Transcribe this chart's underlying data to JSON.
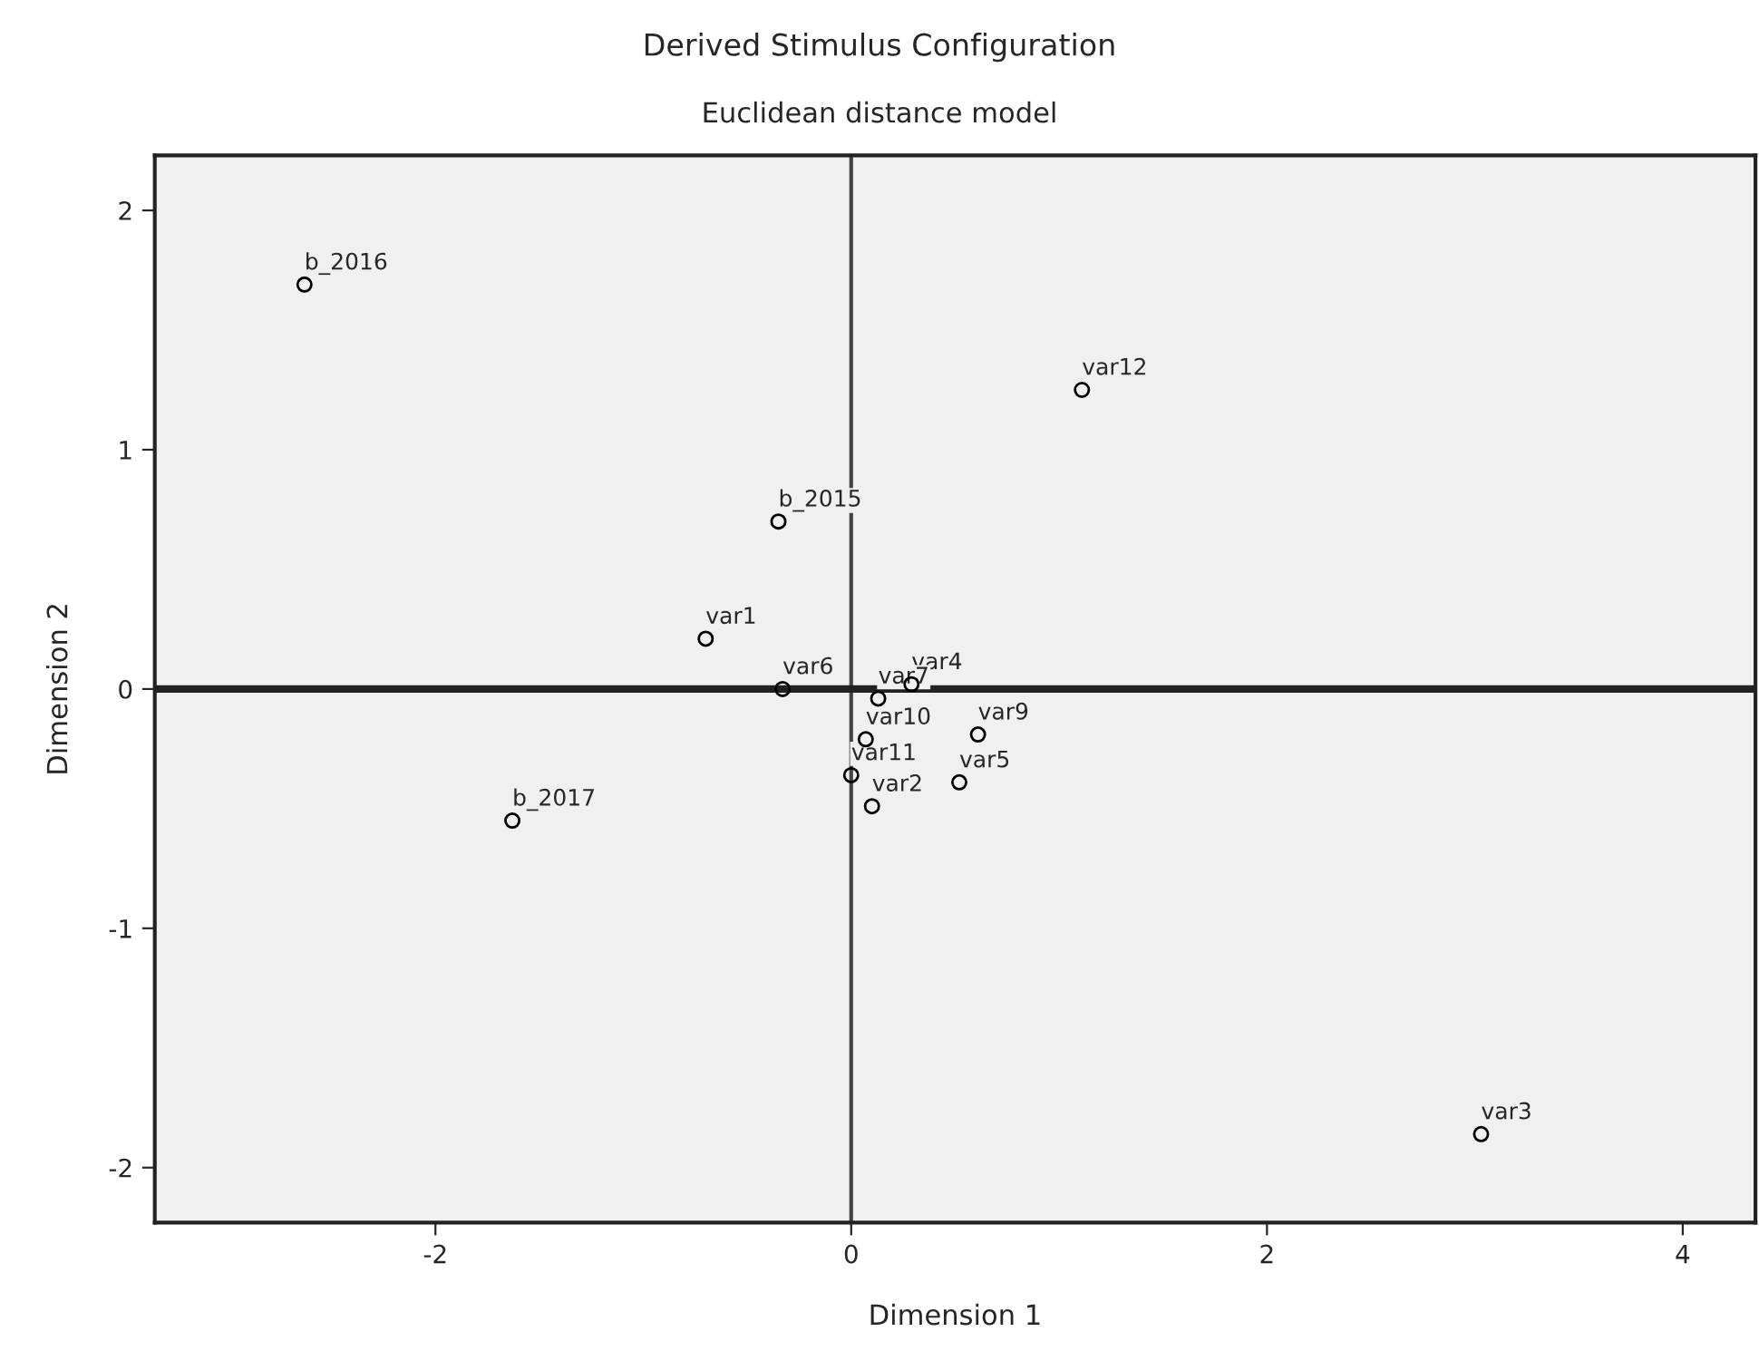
{
  "chart_data": {
    "type": "scatter",
    "title": "Derived Stimulus Configuration",
    "subtitle": "Euclidean distance model",
    "xlabel": "Dimension 1",
    "ylabel": "Dimension 2",
    "xlim": [
      -3.35,
      4.35
    ],
    "ylim": [
      -2.23,
      2.23
    ],
    "xticks": [
      -2,
      0,
      2,
      4
    ],
    "yticks": [
      -2,
      -1,
      0,
      1,
      2
    ],
    "grid": false,
    "marker": "circle",
    "series": [
      {
        "color": "#000000",
        "x": [
          -2.63,
          1.11,
          -0.35,
          -0.7,
          0.29,
          -1.63,
          3.03,
          -0.33,
          0.13,
          0.07,
          0.61,
          0.52,
          0.0,
          0.1
        ],
        "values": [
          1.69,
          1.25,
          0.7,
          0.21,
          0.02,
          -0.55,
          -1.86,
          0.0,
          -0.04,
          -0.21,
          -0.19,
          -0.39,
          -0.36,
          -0.49
        ]
      }
    ],
    "annotations": [
      {
        "text": "b_2016",
        "x": -2.63,
        "y": 1.69
      },
      {
        "text": "var12",
        "x": 1.11,
        "y": 1.25
      },
      {
        "text": "b_2015",
        "x": -0.35,
        "y": 0.7
      },
      {
        "text": "var1",
        "x": -0.7,
        "y": 0.21
      },
      {
        "text": "var4",
        "x": 0.29,
        "y": 0.02
      },
      {
        "text": "b_2017",
        "x": -1.63,
        "y": -0.55
      },
      {
        "text": "var3",
        "x": 3.03,
        "y": -1.86
      },
      {
        "text": "var6",
        "x": -0.33,
        "y": 0.0
      },
      {
        "text": "var7",
        "x": 0.13,
        "y": -0.04
      },
      {
        "text": "var10",
        "x": 0.07,
        "y": -0.21
      },
      {
        "text": "var9",
        "x": 0.61,
        "y": -0.19
      },
      {
        "text": "var5",
        "x": 0.52,
        "y": -0.39
      },
      {
        "text": "var11",
        "x": 0.0,
        "y": -0.36
      },
      {
        "text": "var2",
        "x": 0.1,
        "y": -0.49
      }
    ],
    "ref_lines": [
      {
        "axis": "x",
        "value": 0,
        "color": "#444444"
      },
      {
        "axis": "y",
        "value": 0,
        "color": "#222222"
      }
    ]
  }
}
